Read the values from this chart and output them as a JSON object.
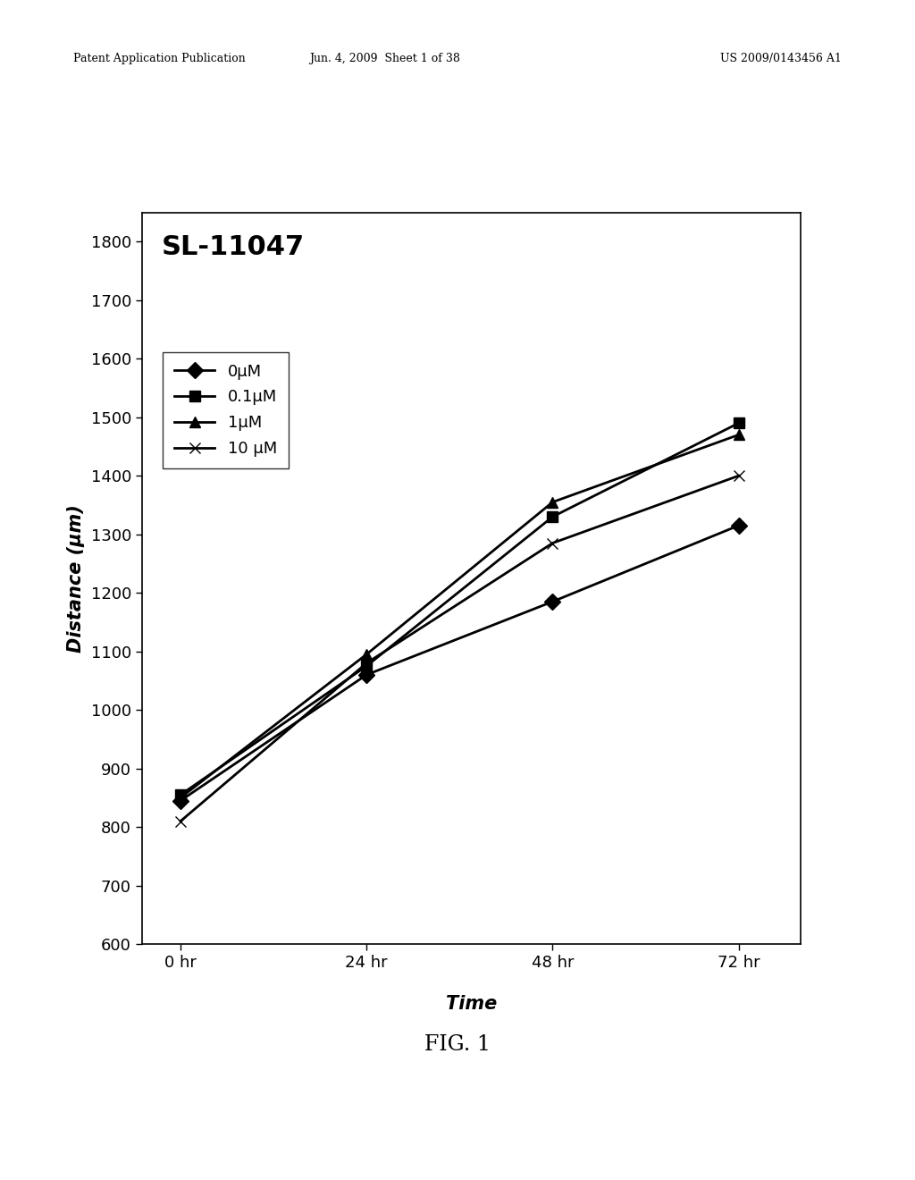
{
  "title": "SL-11047",
  "xlabel": "Time",
  "ylabel": "Distance (μm)",
  "x_values": [
    0,
    24,
    48,
    72
  ],
  "x_labels": [
    "0 hr",
    "24 hr",
    "48 hr",
    "72 hr"
  ],
  "series": [
    {
      "label": "0μM",
      "values": [
        845,
        1060,
        1185,
        1315
      ],
      "marker": "D",
      "color": "#000000"
    },
    {
      "label": "0.1μM",
      "values": [
        855,
        1075,
        1330,
        1490
      ],
      "marker": "s",
      "color": "#000000"
    },
    {
      "label": "1μM",
      "values": [
        850,
        1095,
        1355,
        1470
      ],
      "marker": "^",
      "color": "#000000"
    },
    {
      "label": "10 μM",
      "values": [
        810,
        1080,
        1285,
        1400
      ],
      "marker": "x",
      "color": "#000000"
    }
  ],
  "ylim": [
    600,
    1850
  ],
  "yticks": [
    600,
    700,
    800,
    900,
    1000,
    1100,
    1200,
    1300,
    1400,
    1500,
    1600,
    1700,
    1800
  ],
  "background_color": "#ffffff",
  "plot_bg_color": "#ffffff",
  "linewidth": 2.0,
  "markersize": 9,
  "legend_fontsize": 13,
  "title_fontsize": 22,
  "tick_fontsize": 13,
  "axis_label_fontsize": 15,
  "header_left": "Patent Application Publication",
  "header_mid": "Jun. 4, 2009  Sheet 1 of 38",
  "header_right": "US 2009/0143456 A1",
  "footer_text": "FIG. 1"
}
